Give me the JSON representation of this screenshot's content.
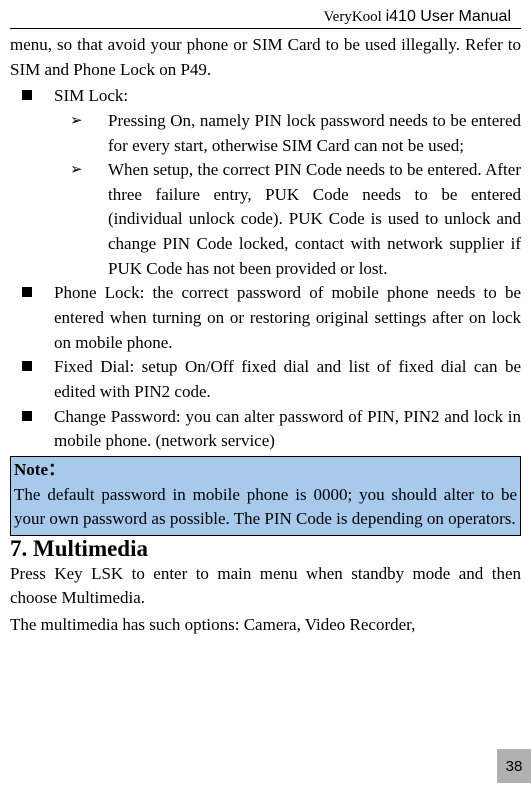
{
  "header": {
    "brand": "VeryKool ",
    "model": "i410 User Manual"
  },
  "intro": "menu, so that avoid your phone or SIM Card to be used illegally. Refer to SIM and Phone Lock on P49.",
  "bullets": {
    "simlock": {
      "title": "SIM Lock:"
    },
    "sub1": "Pressing On, namely PIN lock password needs to be entered for every start, otherwise SIM Card can not be used;",
    "sub2": "When setup, the correct PIN Code needs to be entered. After three failure entry, PUK Code needs to be entered (individual unlock code). PUK Code is used to unlock and change PIN Code locked, contact with network supplier if PUK Code has not been provided or lost.",
    "phonelock": "Phone Lock: the correct password of mobile phone needs to be entered when turning on or restoring original settings after on lock on mobile phone.",
    "fixeddial": "Fixed Dial: setup On/Off fixed dial and list of fixed dial can be edited with PIN2 code.",
    "changepwd": "Change Password: you can alter password of PIN, PIN2 and lock in mobile phone. (network service)"
  },
  "note": {
    "title": "Note：",
    "body": "The default password in mobile phone is 0000; you should alter to be your own password as possible. The PIN Code is depending on operators."
  },
  "section": {
    "heading": "7. Multimedia",
    "p1": "Press Key LSK to enter to main menu when standby mode and then choose Multimedia.",
    "p2": "The multimedia has such options: Camera, Video Recorder,"
  },
  "pagenum": "38",
  "colors": {
    "noteBg": "#a6c9ec",
    "pagenumBg": "#b0b0b0"
  }
}
